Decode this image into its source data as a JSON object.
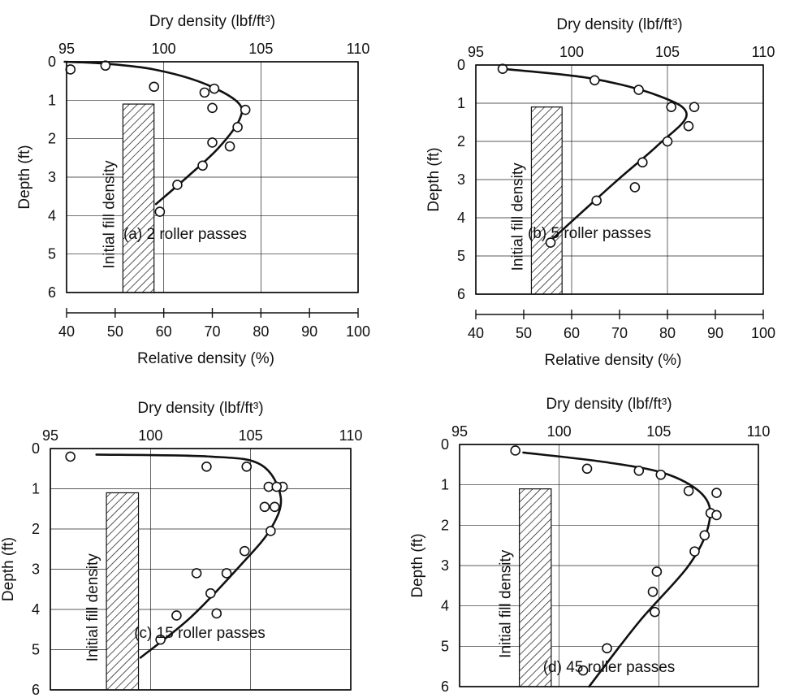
{
  "chart_data": [
    {
      "type": "scatter",
      "panel_label": "(a) 2 roller passes",
      "top_axis_label": "Dry density (lbf/ft³)",
      "top_ticks": [
        "95",
        "100",
        "105",
        "110"
      ],
      "ylabel": "Depth (ft)",
      "y_ticks": [
        "0",
        "1",
        "2",
        "3",
        "4",
        "5",
        "6"
      ],
      "bottom_axis_label": "Relative density (%)",
      "bottom_ticks": [
        "40",
        "50",
        "60",
        "70",
        "80",
        "90",
        "100"
      ],
      "band_label": "Initial fill density",
      "band_dry_density": [
        97.9,
        99.5
      ],
      "xlim": [
        95,
        110
      ],
      "ylim": [
        0,
        6
      ],
      "y_inverted": true,
      "grid": true,
      "points": [
        {
          "x": 95.2,
          "y": 0.2
        },
        {
          "x": 97.0,
          "y": 0.1
        },
        {
          "x": 99.5,
          "y": 0.65
        },
        {
          "x": 102.1,
          "y": 0.8
        },
        {
          "x": 102.6,
          "y": 0.7
        },
        {
          "x": 102.5,
          "y": 1.2
        },
        {
          "x": 104.2,
          "y": 1.25
        },
        {
          "x": 103.8,
          "y": 1.7
        },
        {
          "x": 102.5,
          "y": 2.1
        },
        {
          "x": 103.4,
          "y": 2.2
        },
        {
          "x": 102.0,
          "y": 2.7
        },
        {
          "x": 100.7,
          "y": 3.2
        },
        {
          "x": 99.8,
          "y": 3.9
        }
      ],
      "curve": [
        {
          "x": 94.9,
          "y": 0.0
        },
        {
          "x": 97.0,
          "y": 0.05
        },
        {
          "x": 99.5,
          "y": 0.2
        },
        {
          "x": 102.0,
          "y": 0.55
        },
        {
          "x": 103.8,
          "y": 1.05
        },
        {
          "x": 103.9,
          "y": 1.5
        },
        {
          "x": 102.8,
          "y": 2.25
        },
        {
          "x": 101.2,
          "y": 3.0
        },
        {
          "x": 99.6,
          "y": 3.7
        }
      ]
    },
    {
      "type": "scatter",
      "panel_label": "(b) 5 roller passes",
      "top_axis_label": "Dry density (lbf/ft³)",
      "top_ticks": [
        "95",
        "100",
        "105",
        "110"
      ],
      "ylabel": "Depth (ft)",
      "y_ticks": [
        "0",
        "1",
        "2",
        "3",
        "4",
        "5",
        "6"
      ],
      "bottom_axis_label": "Relative density (%)",
      "bottom_ticks": [
        "40",
        "50",
        "60",
        "70",
        "80",
        "90",
        "100"
      ],
      "band_label": "Initial fill density",
      "band_dry_density": [
        97.9,
        99.5
      ],
      "xlim": [
        95,
        110
      ],
      "ylim": [
        0,
        6
      ],
      "y_inverted": true,
      "grid": true,
      "points": [
        {
          "x": 96.4,
          "y": 0.1
        },
        {
          "x": 101.2,
          "y": 0.4
        },
        {
          "x": 103.5,
          "y": 0.65
        },
        {
          "x": 105.2,
          "y": 1.1
        },
        {
          "x": 106.4,
          "y": 1.1
        },
        {
          "x": 106.1,
          "y": 1.6
        },
        {
          "x": 105.0,
          "y": 2.0
        },
        {
          "x": 103.7,
          "y": 2.55
        },
        {
          "x": 103.3,
          "y": 3.2
        },
        {
          "x": 101.3,
          "y": 3.55
        },
        {
          "x": 98.9,
          "y": 4.65
        }
      ],
      "curve": [
        {
          "x": 96.4,
          "y": 0.1
        },
        {
          "x": 101.0,
          "y": 0.35
        },
        {
          "x": 104.5,
          "y": 0.8
        },
        {
          "x": 106.0,
          "y": 1.3
        },
        {
          "x": 104.5,
          "y": 2.1
        },
        {
          "x": 102.2,
          "y": 3.1
        },
        {
          "x": 98.9,
          "y": 4.6
        }
      ]
    },
    {
      "type": "scatter",
      "panel_label": "(c) 15 roller passes",
      "top_axis_label": "Dry density (lbf/ft³)",
      "top_ticks": [
        "95",
        "100",
        "105",
        "110"
      ],
      "ylabel": "Depth (ft)",
      "y_ticks": [
        "0",
        "1",
        "2",
        "3",
        "4",
        "5",
        "6"
      ],
      "band_label": "Initial fill density",
      "band_dry_density": [
        97.8,
        99.4
      ],
      "xlim": [
        95,
        110
      ],
      "ylim": [
        0,
        6
      ],
      "y_inverted": true,
      "grid": true,
      "points": [
        {
          "x": 96.0,
          "y": 0.2
        },
        {
          "x": 102.8,
          "y": 0.45
        },
        {
          "x": 104.8,
          "y": 0.45
        },
        {
          "x": 105.9,
          "y": 0.95
        },
        {
          "x": 106.6,
          "y": 0.95
        },
        {
          "x": 106.3,
          "y": 0.95
        },
        {
          "x": 105.7,
          "y": 1.45
        },
        {
          "x": 106.2,
          "y": 1.45
        },
        {
          "x": 106.0,
          "y": 2.05
        },
        {
          "x": 104.7,
          "y": 2.55
        },
        {
          "x": 103.8,
          "y": 3.1
        },
        {
          "x": 102.3,
          "y": 3.1
        },
        {
          "x": 103.0,
          "y": 3.6
        },
        {
          "x": 103.3,
          "y": 4.1
        },
        {
          "x": 101.3,
          "y": 4.15
        },
        {
          "x": 100.5,
          "y": 4.75
        }
      ],
      "curve": [
        {
          "x": 97.3,
          "y": 0.15
        },
        {
          "x": 103.0,
          "y": 0.2
        },
        {
          "x": 105.5,
          "y": 0.4
        },
        {
          "x": 106.5,
          "y": 1.2
        },
        {
          "x": 106.0,
          "y": 2.0
        },
        {
          "x": 104.5,
          "y": 2.9
        },
        {
          "x": 102.0,
          "y": 4.2
        },
        {
          "x": 99.5,
          "y": 5.2
        }
      ]
    },
    {
      "type": "scatter",
      "panel_label": "(d) 45 roller passes",
      "top_axis_label": "Dry density (lbf/ft³)",
      "top_ticks": [
        "95",
        "100",
        "105",
        "110"
      ],
      "ylabel": "Depth (ft)",
      "y_ticks": [
        "0",
        "1",
        "2",
        "3",
        "4",
        "5",
        "6"
      ],
      "band_label": "Initial fill density",
      "band_dry_density": [
        98.0,
        99.6
      ],
      "xlim": [
        95,
        110
      ],
      "ylim": [
        0,
        6
      ],
      "y_inverted": true,
      "grid": true,
      "points": [
        {
          "x": 97.8,
          "y": 0.15
        },
        {
          "x": 101.4,
          "y": 0.6
        },
        {
          "x": 104.0,
          "y": 0.65
        },
        {
          "x": 105.1,
          "y": 0.75
        },
        {
          "x": 106.5,
          "y": 1.15
        },
        {
          "x": 107.9,
          "y": 1.2
        },
        {
          "x": 107.6,
          "y": 1.7
        },
        {
          "x": 107.9,
          "y": 1.75
        },
        {
          "x": 107.3,
          "y": 2.25
        },
        {
          "x": 106.8,
          "y": 2.65
        },
        {
          "x": 104.9,
          "y": 3.15
        },
        {
          "x": 104.7,
          "y": 3.65
        },
        {
          "x": 104.8,
          "y": 4.15
        },
        {
          "x": 102.4,
          "y": 5.05
        },
        {
          "x": 101.2,
          "y": 5.6
        }
      ],
      "curve": [
        {
          "x": 98.2,
          "y": 0.2
        },
        {
          "x": 102.5,
          "y": 0.45
        },
        {
          "x": 105.5,
          "y": 0.75
        },
        {
          "x": 107.3,
          "y": 1.3
        },
        {
          "x": 107.5,
          "y": 2.0
        },
        {
          "x": 106.5,
          "y": 3.0
        },
        {
          "x": 104.0,
          "y": 4.4
        },
        {
          "x": 101.5,
          "y": 6.0
        }
      ]
    }
  ]
}
